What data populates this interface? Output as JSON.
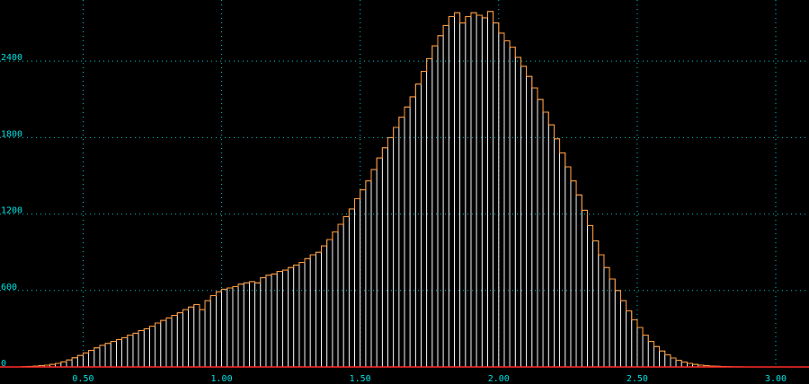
{
  "colors": {
    "background": "#000000",
    "grid": "#00c8c8",
    "bar_fill": "#ffffff",
    "outline": "#ff9a3c",
    "baseline": "#ff2a2a",
    "tick_text": "#00e0e0"
  },
  "chart_data": {
    "type": "bar",
    "title": "",
    "xlabel": "",
    "ylabel": "",
    "xlim": [
      0.2,
      3.12
    ],
    "ylim": [
      0,
      2880
    ],
    "grid": true,
    "xticks": [
      0.5,
      1.0,
      1.5,
      2.0,
      2.5,
      3.0
    ],
    "xtick_labels": [
      "0.50",
      "1.00",
      "1.50",
      "2.00",
      "2.50",
      "3.00"
    ],
    "yticks": [
      0,
      600,
      1200,
      1800,
      2400
    ],
    "ytick_labels": [
      "0",
      "600",
      "1200",
      "1800",
      "2400"
    ],
    "bin_width": 0.02,
    "bins_start": [
      0.2,
      0.22,
      0.24,
      0.26,
      0.28,
      0.3,
      0.32,
      0.34,
      0.36,
      0.38,
      0.4,
      0.42,
      0.44,
      0.46,
      0.48,
      0.5,
      0.52,
      0.54,
      0.56,
      0.58,
      0.6,
      0.62,
      0.64,
      0.66,
      0.68,
      0.7,
      0.72,
      0.74,
      0.76,
      0.78,
      0.8,
      0.82,
      0.84,
      0.86,
      0.88,
      0.9,
      0.92,
      0.94,
      0.96,
      0.98,
      1.0,
      1.02,
      1.04,
      1.06,
      1.08,
      1.1,
      1.12,
      1.14,
      1.16,
      1.18,
      1.2,
      1.22,
      1.24,
      1.26,
      1.28,
      1.3,
      1.32,
      1.34,
      1.36,
      1.38,
      1.4,
      1.42,
      1.44,
      1.46,
      1.48,
      1.5,
      1.52,
      1.54,
      1.56,
      1.58,
      1.6,
      1.62,
      1.64,
      1.66,
      1.68,
      1.7,
      1.72,
      1.74,
      1.76,
      1.78,
      1.8,
      1.82,
      1.84,
      1.86,
      1.88,
      1.9,
      1.92,
      1.94,
      1.96,
      1.98,
      2.0,
      2.02,
      2.04,
      2.06,
      2.08,
      2.1,
      2.12,
      2.14,
      2.16,
      2.18,
      2.2,
      2.22,
      2.24,
      2.26,
      2.28,
      2.3,
      2.32,
      2.34,
      2.36,
      2.38,
      2.4,
      2.42,
      2.44,
      2.46,
      2.48,
      2.5,
      2.52,
      2.54,
      2.56,
      2.58,
      2.6,
      2.62,
      2.64,
      2.66,
      2.68,
      2.7,
      2.72,
      2.74,
      2.76,
      2.78,
      2.8,
      2.82,
      2.84,
      2.86,
      2.88,
      2.9,
      2.92,
      2.94,
      2.96,
      2.98,
      3.0
    ],
    "values": [
      0,
      0,
      0,
      0,
      2,
      4,
      6,
      10,
      14,
      20,
      28,
      40,
      55,
      72,
      90,
      110,
      130,
      150,
      170,
      185,
      200,
      215,
      230,
      250,
      265,
      285,
      300,
      320,
      345,
      365,
      385,
      405,
      425,
      450,
      470,
      490,
      450,
      520,
      560,
      590,
      610,
      620,
      630,
      650,
      660,
      670,
      660,
      700,
      720,
      730,
      750,
      760,
      780,
      800,
      820,
      850,
      880,
      900,
      950,
      1000,
      1060,
      1120,
      1180,
      1240,
      1320,
      1390,
      1460,
      1550,
      1640,
      1720,
      1800,
      1880,
      1960,
      2040,
      2120,
      2220,
      2320,
      2420,
      2520,
      2600,
      2680,
      2750,
      2780,
      2700,
      2750,
      2780,
      2760,
      2740,
      2790,
      2700,
      2620,
      2560,
      2510,
      2430,
      2360,
      2280,
      2190,
      2100,
      2000,
      1900,
      1790,
      1680,
      1570,
      1460,
      1350,
      1230,
      1110,
      990,
      880,
      780,
      690,
      600,
      520,
      440,
      370,
      310,
      250,
      200,
      160,
      125,
      95,
      70,
      52,
      38,
      28,
      20,
      14,
      10,
      7,
      5,
      3,
      2,
      1,
      1,
      0,
      0,
      0,
      0,
      0,
      0,
      0
    ]
  }
}
